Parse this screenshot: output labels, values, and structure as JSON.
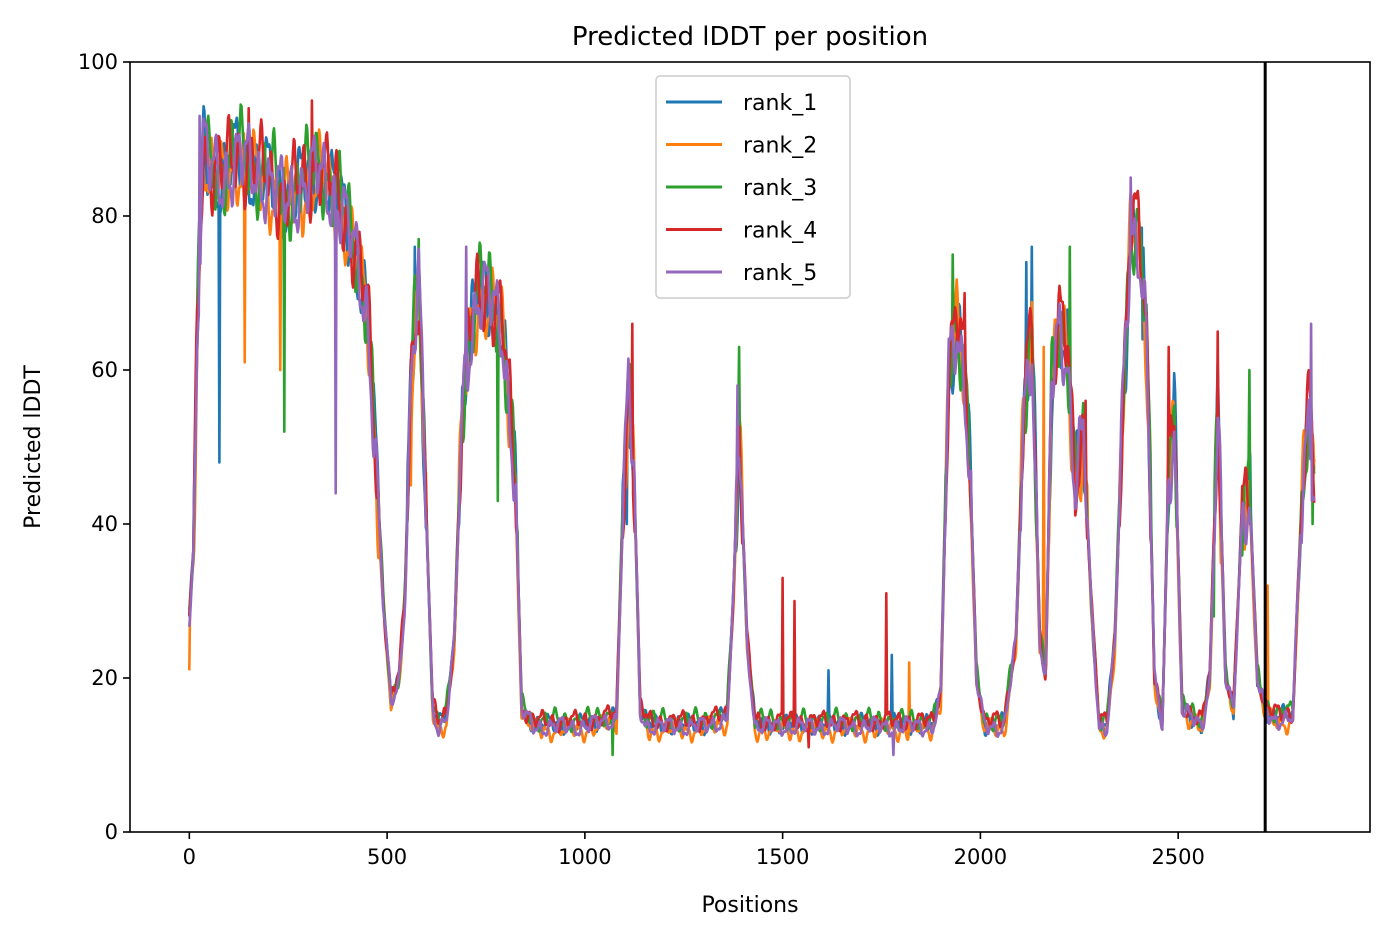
{
  "chart_data": {
    "type": "line",
    "title": "Predicted lDDT per position",
    "xlabel": "Positions",
    "ylabel": "Predicted lDDT",
    "xlim": [
      -150,
      2985
    ],
    "ylim": [
      0,
      100
    ],
    "xticks": [
      0,
      500,
      1000,
      1500,
      2000,
      2500
    ],
    "yticks": [
      0,
      20,
      40,
      60,
      80,
      100
    ],
    "legend_position": "top-center",
    "vline_x": 2720,
    "series": [
      {
        "name": "rank_1",
        "color": "#1f77b4",
        "offset": 0.0,
        "phase": 0.0,
        "spikes": [
          [
            75,
            48
          ],
          [
            570,
            76
          ],
          [
            1105,
            40
          ],
          [
            1615,
            21
          ],
          [
            1775,
            23
          ],
          [
            2115,
            74
          ],
          [
            2130,
            76
          ],
          [
            2410,
            64
          ]
        ]
      },
      {
        "name": "rank_2",
        "color": "#ff7f0e",
        "offset": -0.8,
        "phase": 1.3,
        "spikes": [
          [
            0,
            21
          ],
          [
            140,
            61
          ],
          [
            230,
            60
          ],
          [
            525,
            20
          ],
          [
            560,
            45
          ],
          [
            1385,
            48
          ],
          [
            1820,
            22
          ],
          [
            2725,
            32
          ],
          [
            2160,
            63
          ]
        ]
      },
      {
        "name": "rank_3",
        "color": "#2ca02c",
        "offset": 0.6,
        "phase": 2.6,
        "spikes": [
          [
            240,
            52
          ],
          [
            580,
            77
          ],
          [
            780,
            43
          ],
          [
            830,
            39
          ],
          [
            1070,
            10
          ],
          [
            1390,
            63
          ],
          [
            1930,
            75
          ],
          [
            2225,
            76
          ],
          [
            2590,
            28
          ],
          [
            2680,
            60
          ],
          [
            2840,
            40
          ]
        ]
      },
      {
        "name": "rank_4",
        "color": "#d62728",
        "offset": 0.4,
        "phase": 3.9,
        "spikes": [
          [
            150,
            94
          ],
          [
            310,
            95
          ],
          [
            1120,
            66
          ],
          [
            1500,
            33
          ],
          [
            1530,
            30
          ],
          [
            1565,
            11
          ],
          [
            1762,
            31
          ],
          [
            1960,
            70
          ],
          [
            2475,
            63
          ],
          [
            2600,
            65
          ],
          [
            2265,
            56
          ]
        ]
      },
      {
        "name": "rank_5",
        "color": "#9467bd",
        "offset": -0.3,
        "phase": 5.2,
        "spikes": [
          [
            25,
            93
          ],
          [
            370,
            44
          ],
          [
            700,
            76
          ],
          [
            1385,
            58
          ],
          [
            2380,
            85
          ],
          [
            1780,
            10
          ],
          [
            2835,
            66
          ]
        ]
      }
    ],
    "profile": {
      "x": [
        0,
        10,
        20,
        35,
        50,
        80,
        120,
        160,
        200,
        240,
        280,
        330,
        380,
        420,
        450,
        470,
        490,
        510,
        530,
        545,
        560,
        580,
        600,
        615,
        630,
        650,
        670,
        690,
        710,
        730,
        750,
        770,
        790,
        810,
        825,
        840,
        870,
        900,
        1000,
        1080,
        1095,
        1110,
        1125,
        1140,
        1160,
        1300,
        1360,
        1375,
        1390,
        1410,
        1430,
        1600,
        1880,
        1900,
        1920,
        1940,
        1960,
        1975,
        1990,
        2010,
        2060,
        2090,
        2110,
        2130,
        2150,
        2165,
        2180,
        2200,
        2220,
        2240,
        2260,
        2280,
        2300,
        2320,
        2340,
        2360,
        2380,
        2400,
        2420,
        2440,
        2460,
        2475,
        2490,
        2510,
        2560,
        2580,
        2600,
        2620,
        2640,
        2660,
        2680,
        2700,
        2720,
        2740,
        2760,
        2790,
        2800,
        2815,
        2830,
        2845
      ],
      "y": [
        28,
        36,
        65,
        90,
        86,
        85,
        88,
        86,
        85,
        82,
        84,
        86,
        82,
        75,
        68,
        50,
        30,
        17,
        20,
        30,
        58,
        72,
        40,
        16,
        14,
        15,
        25,
        55,
        65,
        70,
        70,
        68,
        66,
        55,
        45,
        16,
        14,
        14,
        14,
        15,
        40,
        58,
        45,
        16,
        14,
        14,
        15,
        30,
        52,
        25,
        14,
        14,
        14,
        18,
        60,
        66,
        60,
        45,
        20,
        14,
        14,
        25,
        55,
        65,
        25,
        20,
        58,
        66,
        62,
        45,
        52,
        30,
        14,
        14,
        25,
        55,
        78,
        78,
        65,
        20,
        14,
        45,
        55,
        16,
        14,
        20,
        55,
        20,
        16,
        40,
        45,
        20,
        16,
        15,
        15,
        15,
        28,
        45,
        55,
        45
      ]
    }
  }
}
